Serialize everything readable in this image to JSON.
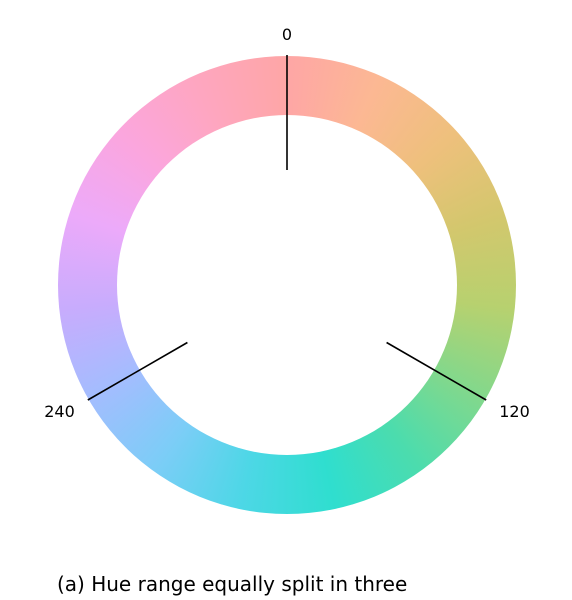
{
  "diagram": {
    "hue_ring_colors": [
      "#fea6a6",
      "#fcb893",
      "#eec07c",
      "#d3c76d",
      "#b7d16f",
      "#82d88c",
      "#4cdcad",
      "#2fdecf",
      "#4dd7e6",
      "#7ccdf7",
      "#a3bdfe",
      "#c8acfd",
      "#ecaafa",
      "#fba6de",
      "#fea6c0",
      "#fea6a6"
    ],
    "splits": [
      {
        "angle_deg": 0,
        "label": "0"
      },
      {
        "angle_deg": 120,
        "label": "120"
      },
      {
        "angle_deg": 240,
        "label": "240"
      }
    ],
    "caption": "(a) Hue range equally split in three"
  }
}
